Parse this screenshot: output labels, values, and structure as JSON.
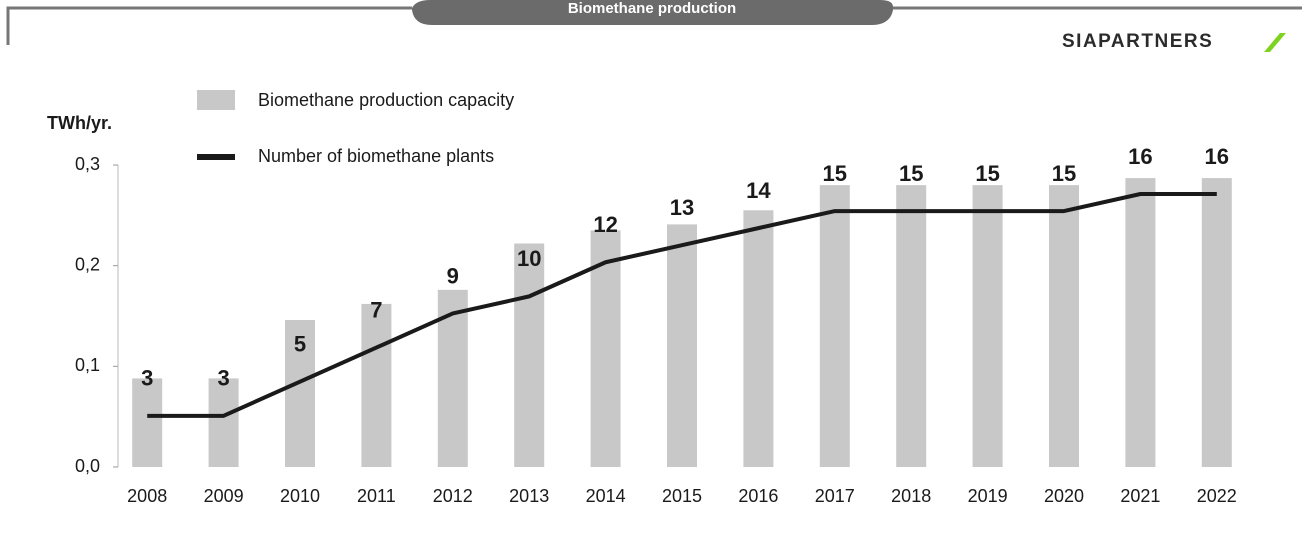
{
  "header": {
    "title": "Biomethane production",
    "logo": "SIAPARTNERS"
  },
  "chart_data": {
    "type": "bar",
    "y_label": "TWh/yr.",
    "categories": [
      "2008",
      "2009",
      "2010",
      "2011",
      "2012",
      "2013",
      "2014",
      "2015",
      "2016",
      "2017",
      "2018",
      "2019",
      "2020",
      "2021",
      "2022"
    ],
    "series": [
      {
        "name": "Biomethane production capacity",
        "color": "#c8c8c8",
        "type": "bar",
        "values": [
          0.088,
          0.088,
          0.146,
          0.162,
          0.176,
          0.222,
          0.235,
          0.241,
          0.255,
          0.28,
          0.28,
          0.28,
          0.28,
          0.287,
          0.287
        ]
      },
      {
        "name": "Number of biomethane plants",
        "color": "#1a1a1a",
        "type": "line",
        "axis": "y2",
        "values": [
          3,
          3,
          5,
          7,
          9,
          10,
          12,
          13,
          14,
          15,
          15,
          15,
          15,
          16,
          16
        ]
      }
    ],
    "ylim": [
      0,
      0.3
    ],
    "yticks": [
      {
        "value": 0,
        "label": "0,0"
      },
      {
        "value": 0.1,
        "label": "0,1"
      },
      {
        "value": 0.2,
        "label": "0,2"
      },
      {
        "value": 0.3,
        "label": "0,3"
      }
    ],
    "y2lim": [
      0,
      17.7
    ]
  }
}
